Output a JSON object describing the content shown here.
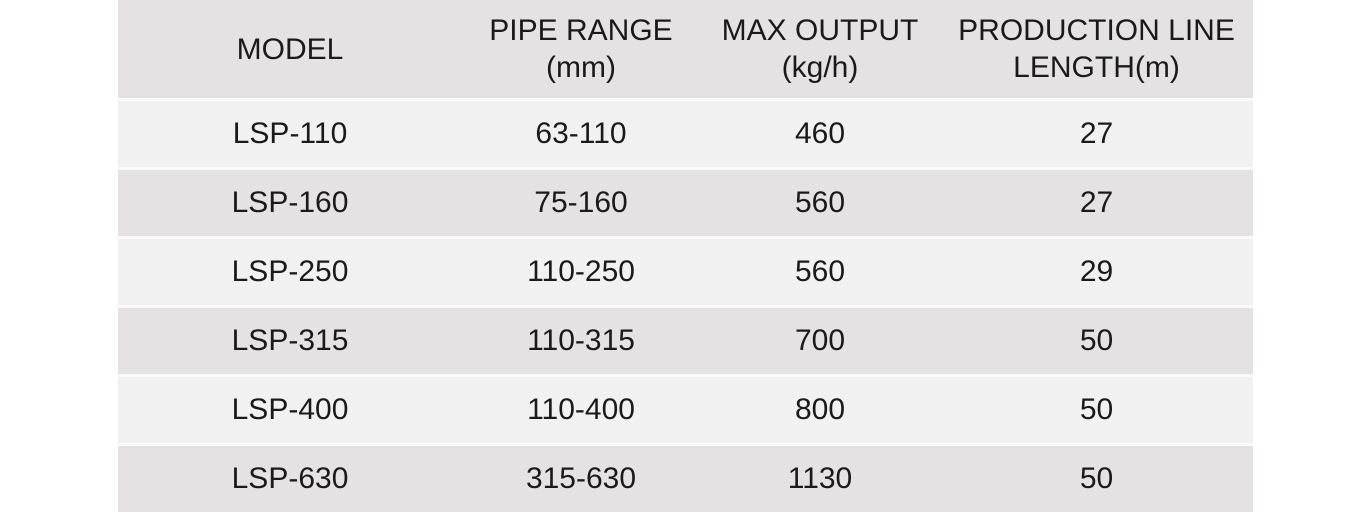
{
  "chart_data": {
    "type": "table",
    "columns": [
      {
        "line1": "MODEL",
        "line2": ""
      },
      {
        "line1": "PIPE RANGE",
        "line2": "(mm)"
      },
      {
        "line1": "MAX OUTPUT",
        "line2": "(kg/h)"
      },
      {
        "line1": "PRODUCTION LINE",
        "line2": "LENGTH(m)"
      }
    ],
    "rows": [
      {
        "model": "LSP-110",
        "pipe_range": "63-110",
        "max_output": "460",
        "line_length": "27"
      },
      {
        "model": "LSP-160",
        "pipe_range": "75-160",
        "max_output": "560",
        "line_length": "27"
      },
      {
        "model": "LSP-250",
        "pipe_range": "110-250",
        "max_output": "560",
        "line_length": "29"
      },
      {
        "model": "LSP-315",
        "pipe_range": "110-315",
        "max_output": "700",
        "line_length": "50"
      },
      {
        "model": "LSP-400",
        "pipe_range": "110-400",
        "max_output": "800",
        "line_length": "50"
      },
      {
        "model": "LSP-630",
        "pipe_range": "315-630",
        "max_output": "1130",
        "line_length": "50"
      }
    ]
  },
  "colors": {
    "page_bg": "#ffffff",
    "header_bg": "#e4e2e3",
    "row_dark_bg": "#e4e2e3",
    "row_light_bg": "#f2f1f2",
    "separator": "#fbfbfb",
    "text": "#1a1a1a"
  }
}
